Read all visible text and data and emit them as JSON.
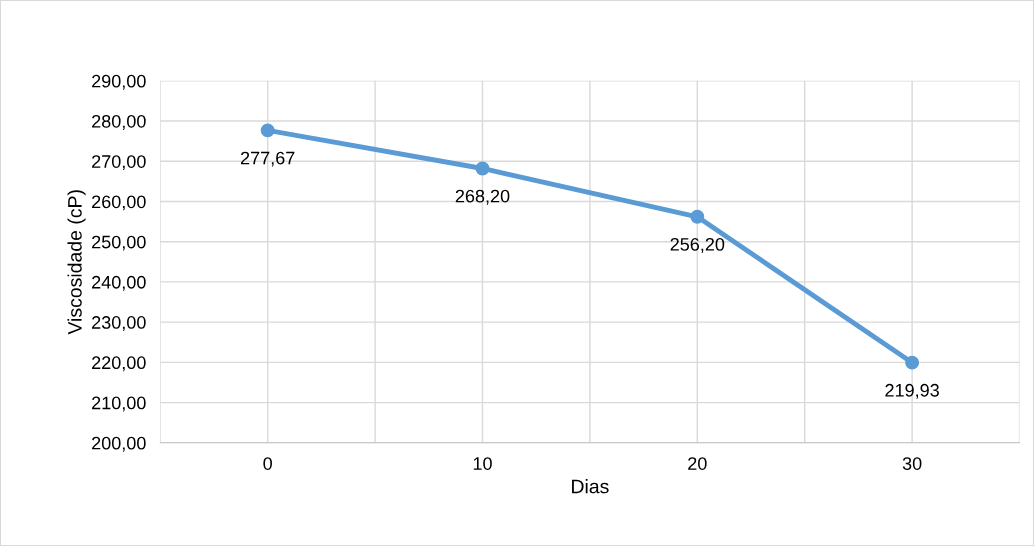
{
  "chart_data": {
    "type": "line",
    "xlabel": "Dias",
    "ylabel": "Viscosidade (cP)",
    "x": [
      0,
      10,
      20,
      30
    ],
    "series": [
      {
        "color": "#5b9bd5",
        "values": [
          277.67,
          268.2,
          256.2,
          219.93
        ],
        "value_labels": [
          "277,67",
          "268,20",
          "256,20",
          "219,93"
        ]
      }
    ],
    "xlim": [
      -5,
      35
    ],
    "xticks": [
      {
        "value": -5,
        "label": null
      },
      0,
      {
        "value": 5,
        "label": null
      },
      10,
      {
        "value": 15,
        "label": null
      },
      20,
      {
        "value": 25,
        "label": null
      },
      30,
      {
        "value": 35,
        "label": null
      }
    ],
    "ylim": [
      200,
      290
    ],
    "yticks": [
      {
        "value": 200,
        "label": "200,00"
      },
      {
        "value": 210,
        "label": "210,00"
      },
      {
        "value": 220,
        "label": "220,00"
      },
      {
        "value": 230,
        "label": "230,00"
      },
      {
        "value": 240,
        "label": "240,00"
      },
      {
        "value": 250,
        "label": "250,00"
      },
      {
        "value": 260,
        "label": "260,00"
      },
      {
        "value": 270,
        "label": "270,00"
      },
      {
        "value": 280,
        "label": "280,00"
      },
      {
        "value": 290,
        "label": "290,00"
      }
    ],
    "grid": true,
    "marker": "circle",
    "line_style": "solid"
  }
}
